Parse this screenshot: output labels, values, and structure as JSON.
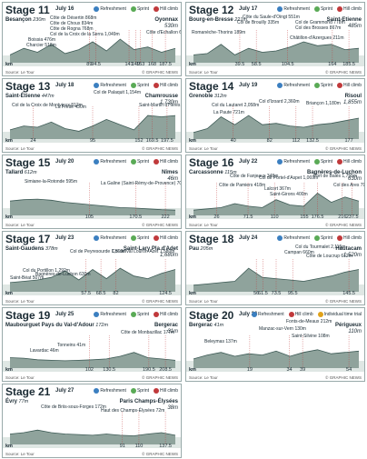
{
  "source_label": "Source: Le Tour",
  "credit": "© GRAPHIC NEWS",
  "km_label": "km",
  "legend": {
    "refreshment": "Refreshment",
    "sprint": "Sprint",
    "hill": "Hill climb",
    "itt": "Individual time trial"
  },
  "colors": {
    "profile": "#8fa39c",
    "line": "#3d5a55",
    "bg_band": "#dfe7e4"
  },
  "stages": [
    {
      "title": "Stage 11",
      "date": "July 16",
      "start": "Besançon",
      "start_alt": "230m",
      "finish": "Oyonnax",
      "finish_alt": "530m",
      "km_marks": [
        "89",
        "94.5",
        "141",
        "149",
        "153",
        "168",
        "187.5"
      ],
      "annotations": [
        "Côte de Désertin 868m",
        "Côte de Choux 834m",
        "Côte de Rogna 768m",
        "Col de la Croix de la Serra 1,049m",
        "Boissia 476m",
        "Charcier 518m",
        "Côte d'Echallon 696m"
      ]
    },
    {
      "title": "Stage 12",
      "date": "July 17",
      "start": "Bourg-en-Bresse",
      "start_alt": "221m",
      "finish": "Saint-Etienne",
      "finish_alt": "485m",
      "km_marks": [
        "39.5",
        "58.5",
        "104.5",
        "164",
        "185.5"
      ],
      "annotations": [
        "Côte du Saule-d'Oingt 551m",
        "Col de Brouilly 335m",
        "Col de Grammond 778m",
        "Col des Brosses 867m",
        "Romanèche-Thorins 189m",
        "Châtillon-d'Azergues 211m"
      ]
    },
    {
      "title": "Stage 13",
      "date": "July 18",
      "start": "Saint-Étienne",
      "start_alt": "447m",
      "finish": "Chamrousse",
      "finish_alt": "1,730m",
      "km_marks": [
        "24",
        "95",
        "152",
        "169.5",
        "197.5"
      ],
      "annotations": [
        "Col de Palaquit 1,154m",
        "Col de la Croix de Montvieux 812m",
        "La Frette 430m",
        "Saint-Martin d'Hères 214m"
      ]
    },
    {
      "title": "Stage 14",
      "date": "July 19",
      "start": "Grenoble",
      "start_alt": "312m",
      "finish": "Risoul",
      "finish_alt": "1,855m",
      "km_marks": [
        "40",
        "82",
        "112",
        "132.5",
        "177"
      ],
      "annotations": [
        "Col du Lautaret 2,058m",
        "Col d'Izoard 2,360m",
        "La Paute 721m",
        "Briançon 1,180m"
      ]
    },
    {
      "title": "Stage 15",
      "date": "July 20",
      "start": "Tallard",
      "start_alt": "612m",
      "finish": "Nîmes",
      "finish_alt": "46m",
      "km_marks": [
        "105",
        "170.5",
        "222"
      ],
      "annotations": [
        "Simiane-la-Rotonde 595m",
        "La Galine (Saint-Rémy-de-Provence) 70m"
      ]
    },
    {
      "title": "Stage 16",
      "date": "July 22",
      "start": "Carcassonne",
      "start_alt": "115m",
      "finish": "Bagnères-de-Luchon",
      "finish_alt": "630m",
      "km_marks": [
        "26",
        "71.5",
        "110",
        "155",
        "176.5",
        "216",
        "237.5"
      ],
      "annotations": [
        "Côte de Fanjeaux 348m",
        "Côte de Pamiers 418m",
        "Col de Portel-d'Aspet 1,069m",
        "Lalcort 367m",
        "Port de Balès 1,755m",
        "Saint-Girons 400m",
        "Col des Ares 797m"
      ]
    },
    {
      "title": "Stage 17",
      "date": "July 23",
      "start": "Saint-Gaudens",
      "start_alt": "378m",
      "finish": "Saint-Lary Pla d'Adet",
      "finish_alt": "1,680m",
      "km_marks": [
        "57.5",
        "68.5",
        "82",
        "124.5"
      ],
      "annotations": [
        "Col du Portillon 1,292m",
        "Col de Peyresourde 1,569m",
        "Col de Val Louron-Azet 1,580m",
        "Saint-Béat 507m",
        "Bagnères-de-Luchon 630m"
      ]
    },
    {
      "title": "Stage 18",
      "date": "July 24",
      "start": "Pau",
      "start_alt": "205m",
      "finish": "Hautacam",
      "finish_alt": "1,520m",
      "km_marks": [
        "56",
        "61.5",
        "73.5",
        "95.5",
        "145.5"
      ],
      "annotations": [
        "Col du Tourmalet 2,115m",
        "Côte de Loucrup 612m",
        "Campan 660m"
      ]
    },
    {
      "title": "Stage 19",
      "date": "July 25",
      "start": "Maubourguet Pays du Val-d'Adour",
      "start_alt": "172m",
      "finish": "Bergerac",
      "finish_alt": "31m",
      "km_marks": [
        "102",
        "130.5",
        "190.5",
        "208.5"
      ],
      "annotations": [
        "Tonneins 41m",
        "Lavardac 46m",
        "Côte de Monbazillac 177m"
      ]
    },
    {
      "title": "Stage 20",
      "date": "July 26",
      "start": "Bergerac",
      "start_alt": "41m",
      "finish": "Périgueux",
      "finish_alt": "110m",
      "km_marks": [
        "19",
        "34",
        "39",
        "54"
      ],
      "annotations": [
        "Fonts-de-Meaux 212m",
        "Manzac-sur-Vern 130m",
        "Saint-Silvine 108m",
        "Beleymas 137m"
      ]
    },
    {
      "title": "Stage 21",
      "date": "July 27",
      "start": "Évry",
      "start_alt": "77m",
      "finish": "Paris Champs-Élysées",
      "finish_alt": "38m",
      "km_marks": [
        "91",
        "110",
        "137.5"
      ],
      "annotations": [
        "Côte de Briis-sous-Forges 172m",
        "Haut des Champs-Élysées 72m"
      ]
    }
  ]
}
